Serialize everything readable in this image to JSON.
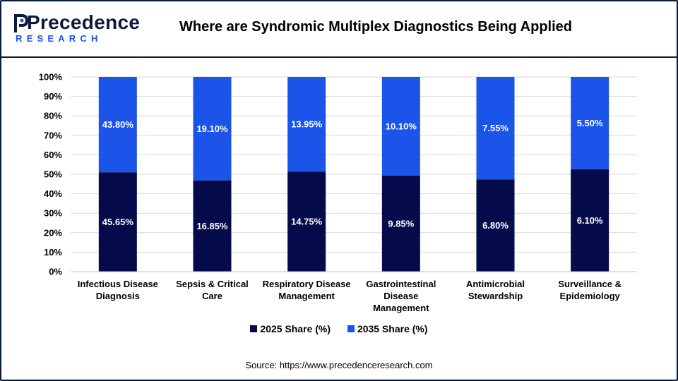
{
  "header": {
    "logo_word": "Precedence",
    "logo_sub": "RESEARCH",
    "title": "Where are Syndromic Multiplex Diagnostics Being Applied"
  },
  "colors": {
    "series_2025": "#050a4a",
    "series_2035": "#1a54e8",
    "grid": "#d9d9d9"
  },
  "source": "Source: https://www.precedenceresearch.com",
  "chart_data": {
    "type": "bar",
    "stacked": "100%",
    "categories": [
      [
        "Infectious Disease",
        "Diagnosis"
      ],
      [
        "Sepsis & Critical",
        "Care"
      ],
      [
        "Respiratory Disease",
        "Management"
      ],
      [
        "Gastrointestinal",
        "Disease",
        "Management"
      ],
      [
        "Antimicrobial",
        "Stewardship"
      ],
      [
        "Surveillance &",
        "Epidemiology"
      ]
    ],
    "series": [
      {
        "name": "2025 Share (%)",
        "values": [
          45.65,
          16.85,
          14.75,
          9.85,
          6.8,
          6.1
        ],
        "labels": [
          "45.65%",
          "16.85%",
          "14.75%",
          "9.85%",
          "6.80%",
          "6.10%"
        ]
      },
      {
        "name": "2035 Share (%)",
        "values": [
          43.8,
          19.1,
          13.95,
          10.1,
          7.55,
          5.5
        ],
        "labels": [
          "43.80%",
          "19.10%",
          "13.95%",
          "10.10%",
          "7.55%",
          "5.50%"
        ]
      }
    ],
    "yticks": [
      "0%",
      "10%",
      "20%",
      "30%",
      "40%",
      "50%",
      "60%",
      "70%",
      "80%",
      "90%",
      "100%"
    ],
    "ylim": [
      0,
      100
    ],
    "grid": true,
    "legend": "bottom-center"
  }
}
